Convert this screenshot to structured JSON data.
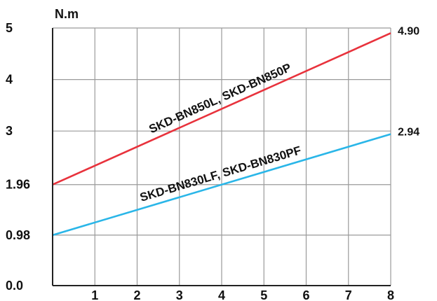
{
  "chart_data": {
    "type": "line",
    "title": "",
    "xlabel": "",
    "ylabel": "N.m",
    "xlim": [
      0,
      8
    ],
    "ylim": [
      0,
      5
    ],
    "x_ticks": [
      1,
      2,
      3,
      4,
      5,
      6,
      7,
      8
    ],
    "x_tick_labels": [
      "1",
      "2",
      "3",
      "4",
      "5",
      "6",
      "7",
      "8"
    ],
    "y_ticks": [
      0,
      0.98,
      1.96,
      3,
      4,
      5
    ],
    "y_tick_labels": [
      "0.0",
      "0.98",
      "1.96",
      "3",
      "4",
      "5"
    ],
    "grid": true,
    "series": [
      {
        "name": "SKD-BN850L, SKD-BN850P",
        "color": "#e8323c",
        "x": [
          0,
          8
        ],
        "y": [
          1.96,
          4.9
        ],
        "end_label": "4.90"
      },
      {
        "name": "SKD-BN830LF, SKD-BN830PF",
        "color": "#2ab6e8",
        "x": [
          0,
          8
        ],
        "y": [
          0.98,
          2.94
        ],
        "end_label": "2.94"
      }
    ]
  }
}
